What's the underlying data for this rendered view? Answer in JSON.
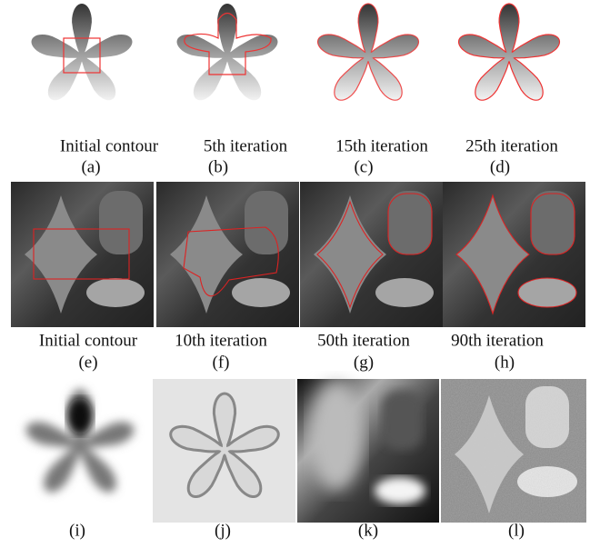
{
  "rows": [
    {
      "panels": [
        {
          "caption": "Initial contour",
          "label": "(a)"
        },
        {
          "caption": "5th iteration",
          "label": "(b)"
        },
        {
          "caption": "15th iteration",
          "label": "(c)"
        },
        {
          "caption": "25th iteration",
          "label": "(d)"
        }
      ]
    },
    {
      "panels": [
        {
          "caption": "Initial contour",
          "label": "(e)"
        },
        {
          "caption": "10th iteration",
          "label": "(f)"
        },
        {
          "caption": "50th iteration",
          "label": "(g)"
        },
        {
          "caption": "90th iteration",
          "label": "(h)"
        }
      ]
    },
    {
      "panels": [
        {
          "label": "(i)"
        },
        {
          "label": "(j)"
        },
        {
          "label": "(k)"
        },
        {
          "label": "(l)"
        }
      ]
    }
  ]
}
